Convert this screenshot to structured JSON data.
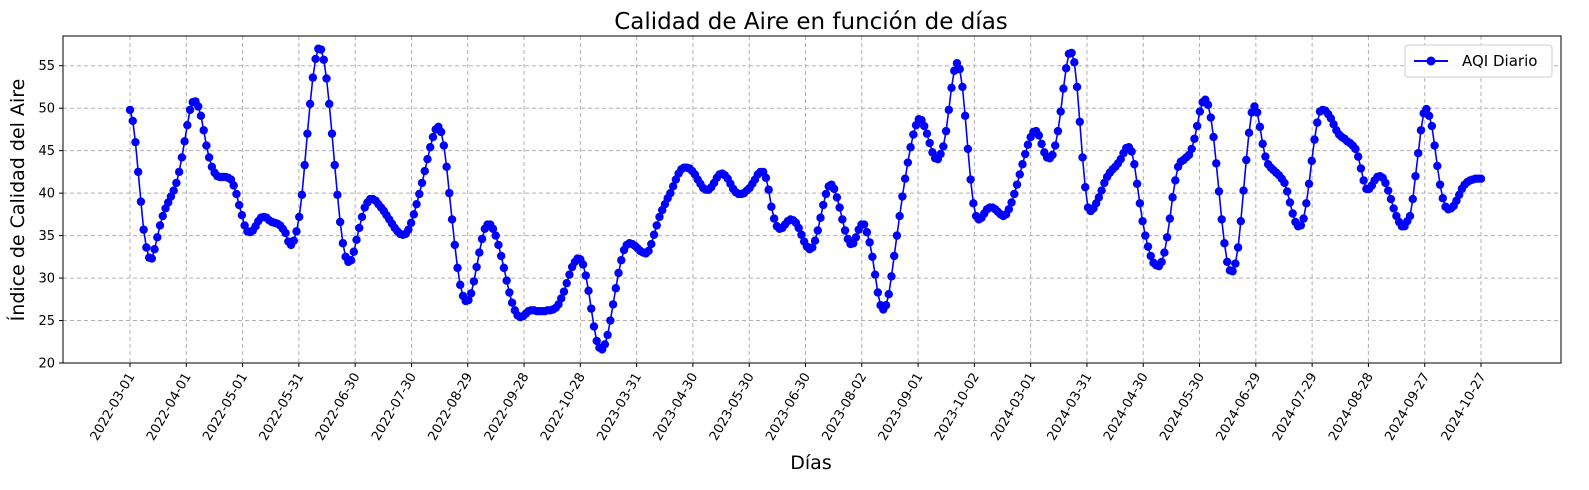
{
  "chart_data": {
    "type": "line",
    "title": "Calidad de Aire en función de días",
    "xlabel": "Días",
    "ylabel": "Índice de Calidad del Aire",
    "ylim": [
      20,
      58.5
    ],
    "yticks": [
      20,
      25,
      30,
      35,
      40,
      45,
      50,
      55
    ],
    "grid": true,
    "legend_position": "top-right",
    "xtick_labels": [
      "2022-03-01",
      "2022-04-01",
      "2022-05-01",
      "2022-05-31",
      "2022-06-30",
      "2022-07-30",
      "2022-08-29",
      "2022-09-28",
      "2022-10-28",
      "2023-03-31",
      "2023-04-30",
      "2023-05-30",
      "2023-06-30",
      "2023-08-02",
      "2023-09-01",
      "2023-10-02",
      "2024-03-01",
      "2024-03-31",
      "2024-04-30",
      "2024-05-30",
      "2024-06-29",
      "2024-07-29",
      "2024-08-28",
      "2024-09-27",
      "2024-10-27"
    ],
    "series": [
      {
        "name": "AQI Diario",
        "color": "#0000ff",
        "marker": "circle",
        "values": [
          49.8,
          48.5,
          46,
          42.5,
          39,
          35.7,
          33.6,
          32.4,
          32.3,
          33.4,
          34.8,
          36.2,
          37.3,
          38.2,
          38.9,
          39.6,
          40.3,
          41.2,
          42.5,
          44.2,
          46.1,
          48,
          49.8,
          50.7,
          50.8,
          50.2,
          49.1,
          47.4,
          45.6,
          44.2,
          43.1,
          42.4,
          42,
          41.9,
          41.9,
          41.9,
          41.8,
          41.6,
          40.9,
          39.9,
          38.6,
          37.4,
          36.2,
          35.5,
          35.4,
          35.6,
          36.1,
          36.7,
          37.1,
          37.2,
          37.1,
          36.8,
          36.6,
          36.5,
          36.4,
          36.2,
          35.8,
          35.3,
          34.3,
          33.9,
          34.4,
          35.5,
          37.2,
          39.8,
          43.3,
          47,
          50.5,
          53.6,
          55.8,
          57,
          56.9,
          55.7,
          53.5,
          50.5,
          47,
          43.3,
          39.8,
          36.6,
          34.1,
          32.5,
          31.9,
          32.1,
          33.1,
          34.5,
          35.9,
          37.2,
          38.3,
          38.9,
          39.3,
          39.3,
          39.1,
          38.7,
          38.3,
          37.9,
          37.4,
          36.9,
          36.4,
          35.9,
          35.5,
          35.2,
          35.1,
          35.2,
          35.7,
          36.5,
          37.5,
          38.7,
          39.9,
          41.2,
          42.6,
          44,
          45.4,
          46.6,
          47.5,
          47.8,
          47.2,
          45.6,
          43.1,
          40,
          36.9,
          33.9,
          31.2,
          29.2,
          27.9,
          27.3,
          27.4,
          28.2,
          29.6,
          31.3,
          33,
          34.6,
          35.8,
          36.3,
          36.3,
          35.8,
          35,
          33.9,
          32.6,
          31.2,
          29.7,
          28.3,
          27.1,
          26.2,
          25.6,
          25.4,
          25.5,
          25.8,
          26.1,
          26.2,
          26.2,
          26.1,
          26.1,
          26.1,
          26.1,
          26.2,
          26.2,
          26.3,
          26.5,
          26.9,
          27.6,
          28.4,
          29.4,
          30.4,
          31.3,
          31.9,
          32.3,
          32.2,
          31.6,
          30.3,
          28.5,
          26.4,
          24.3,
          22.6,
          21.8,
          21.6,
          22.2,
          23.3,
          25,
          26.9,
          28.8,
          30.6,
          32.1,
          33.3,
          33.9,
          34.1,
          34,
          33.8,
          33.5,
          33.2,
          33,
          32.9,
          33.2,
          34,
          35.1,
          36.2,
          37.2,
          38,
          38.7,
          39.4,
          40,
          40.8,
          41.6,
          42.3,
          42.8,
          43,
          43,
          42.9,
          42.6,
          42.2,
          41.6,
          41.1,
          40.6,
          40.4,
          40.4,
          40.7,
          41.2,
          41.8,
          42.2,
          42.3,
          42.1,
          41.7,
          41.1,
          40.5,
          40.1,
          39.9,
          39.9,
          40,
          40.3,
          40.6,
          41.1,
          41.6,
          42.2,
          42.5,
          42.5,
          41.8,
          40.4,
          38.4,
          37,
          36.1,
          35.8,
          35.9,
          36.3,
          36.7,
          36.9,
          36.8,
          36.5,
          35.9,
          35.1,
          34.3,
          33.7,
          33.4,
          33.6,
          34.4,
          35.6,
          37.1,
          38.6,
          39.9,
          40.8,
          41,
          40.5,
          39.5,
          38.3,
          36.9,
          35.6,
          34.6,
          34,
          34.1,
          34.8,
          35.7,
          36.3,
          36.3,
          35.4,
          34.2,
          32.5,
          30.4,
          28.3,
          26.8,
          26.3,
          26.8,
          28.1,
          30.2,
          32.6,
          35,
          37.3,
          39.6,
          41.7,
          43.6,
          45.4,
          46.9,
          48,
          48.7,
          48.6,
          47.9,
          47,
          45.9,
          44.8,
          44.1,
          44,
          44.6,
          45.5,
          47.3,
          49.8,
          52.4,
          54.4,
          55.3,
          54.6,
          52.5,
          49.1,
          45.2,
          41.6,
          38.8,
          37.3,
          36.9,
          37.1,
          37.6,
          38.1,
          38.3,
          38.3,
          38.1,
          37.8,
          37.5,
          37.3,
          37.5,
          38.1,
          38.9,
          39.9,
          41,
          42.2,
          43.4,
          44.6,
          45.7,
          46.6,
          47.2,
          47.3,
          46.8,
          45.8,
          44.8,
          44.2,
          44.1,
          44.5,
          45.6,
          47.3,
          49.6,
          52.3,
          54.7,
          56.4,
          56.5,
          55.4,
          52.5,
          48.4,
          44.2,
          40.7,
          38.3,
          37.9,
          38.2,
          38.8,
          39.5,
          40.3,
          41.2,
          41.9,
          42.4,
          42.8,
          43.1,
          43.5,
          44,
          44.7,
          45.3,
          45.4,
          44.9,
          43.4,
          41.1,
          38.8,
          36.7,
          35,
          33.7,
          32.6,
          31.8,
          31.5,
          31.4,
          31.9,
          33,
          34.8,
          37,
          39.5,
          41.5,
          43.1,
          43.7,
          43.9,
          44.2,
          44.5,
          45.2,
          46.4,
          47.9,
          49.6,
          50.7,
          51,
          50.4,
          48.9,
          46.6,
          43.5,
          40.2,
          36.9,
          34.1,
          31.9,
          30.9,
          30.8,
          31.7,
          33.6,
          36.7,
          40.3,
          43.9,
          47.1,
          49.5,
          50.2,
          49.5,
          47.8,
          45.8,
          44.3,
          43.4,
          43,
          42.7,
          42.4,
          42.1,
          41.7,
          41.2,
          40.2,
          38.9,
          37.6,
          36.6,
          36.1,
          36.2,
          37,
          38.8,
          41.1,
          43.8,
          46.3,
          48.3,
          49.6,
          49.8,
          49.7,
          49.3,
          48.8,
          48.1,
          47.4,
          46.9,
          46.6,
          46.4,
          46.1,
          45.9,
          45.6,
          45.2,
          44.3,
          42.9,
          41.5,
          40.5,
          40.5,
          40.9,
          41.5,
          41.9,
          42,
          41.8,
          41.2,
          40.3,
          39.3,
          38.2,
          37.3,
          36.6,
          36.1,
          36.1,
          36.7,
          37.3,
          39.3,
          42,
          44.7,
          47.4,
          49.4,
          49.9,
          49.1,
          47.9,
          45.6,
          43.2,
          41,
          39.4,
          38.4,
          38.1,
          38.2,
          38.5,
          39.1,
          39.8,
          40.5,
          41,
          41.3,
          41.5,
          41.6,
          41.7,
          41.7,
          41.7
        ]
      }
    ]
  }
}
